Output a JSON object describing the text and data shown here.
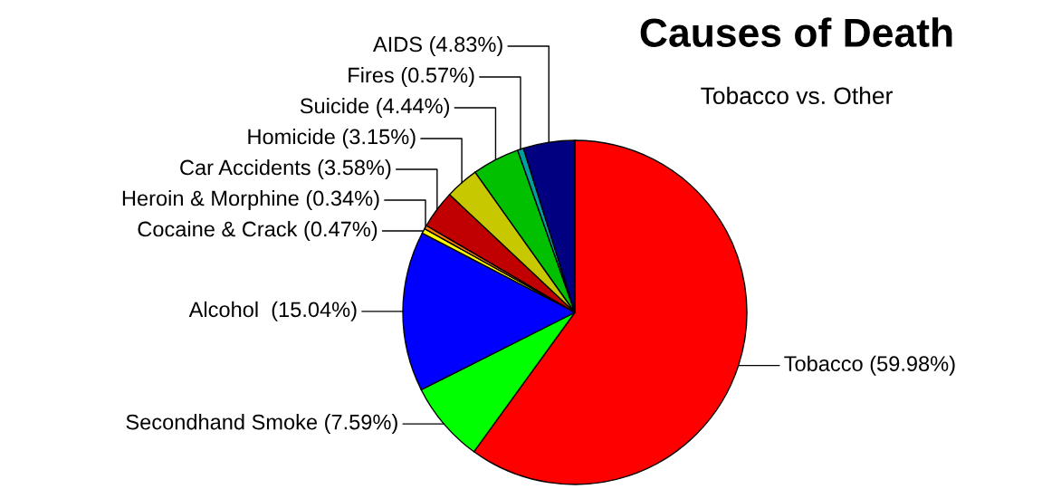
{
  "chart_data": {
    "type": "pie",
    "title": "Causes of Death",
    "subtitle": "Tobacco vs. Other",
    "categories": [
      "Tobacco (59.98%)",
      "Secondhand Smoke (7.59%)",
      "Alcohol  (15.04%)",
      "Cocaine & Crack (0.47%)",
      "Heroin & Morphine (0.34%)",
      "Car Accidents (3.58%)",
      "Homicide (3.15%)",
      "Suicide (4.44%)",
      "Fires (0.57%)",
      "AIDS (4.83%)"
    ],
    "values": [
      59.98,
      7.59,
      15.04,
      0.47,
      0.34,
      3.58,
      3.15,
      4.44,
      0.57,
      4.83
    ],
    "colors": [
      "#ff0000",
      "#00ff00",
      "#0000ff",
      "#ffff00",
      "#ff8000",
      "#c00000",
      "#c8c800",
      "#00c000",
      "#00a0a0",
      "#000080"
    ],
    "legend": false
  }
}
